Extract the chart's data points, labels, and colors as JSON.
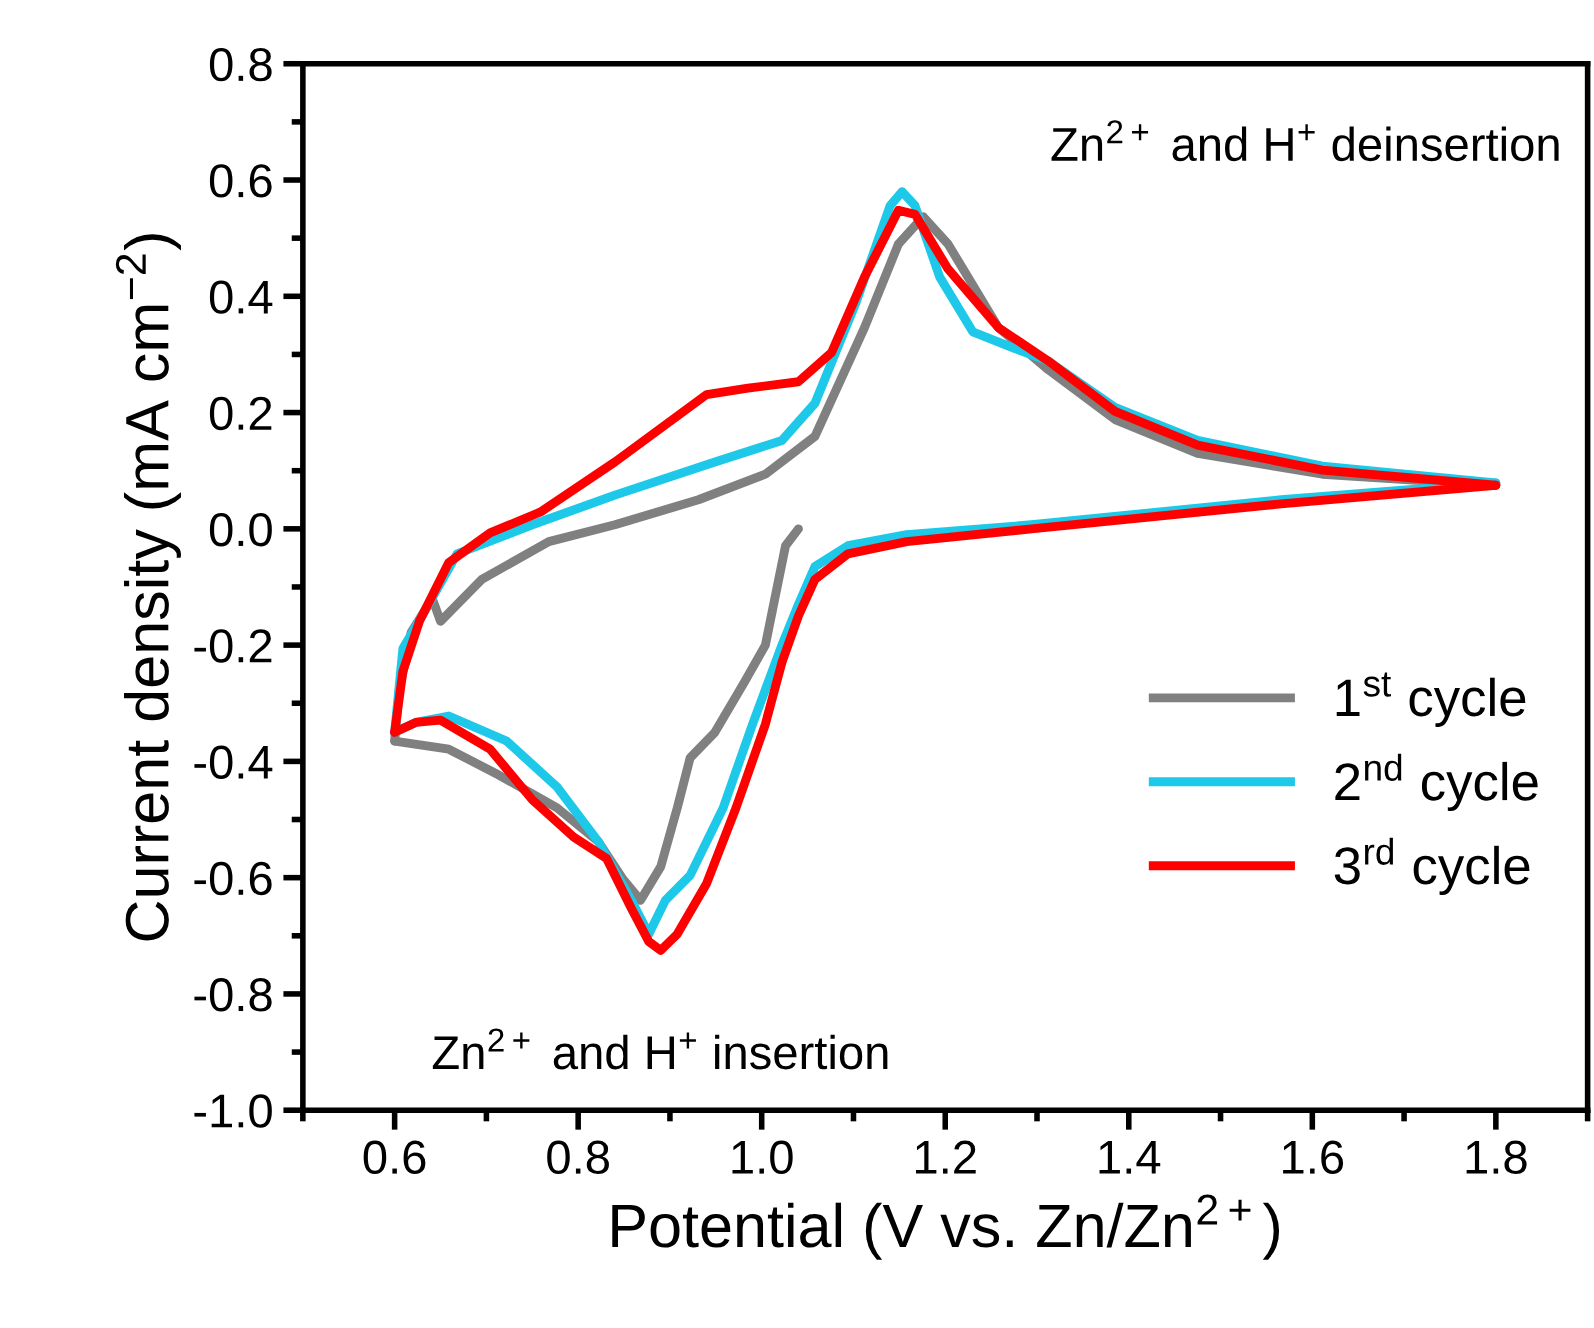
{
  "chart_data": {
    "type": "line",
    "xlabel": "Potential (V vs. Zn/Zn$^{2+}$)",
    "ylabel": "Current density (mA cm$^{−2}$)",
    "annotations": [
      "Zn$^{2+}$ and H$^{+}$ deinsertion",
      "Zn$^{2+}$ and H$^{+}$ insertion"
    ],
    "xlim": [
      0.5,
      1.9
    ],
    "ylim": [
      -1.0,
      0.8
    ],
    "xticks": [
      {
        "value": 0.5,
        "label": null
      },
      0.6,
      {
        "value": 0.7,
        "label": null
      },
      0.8,
      {
        "value": 0.9,
        "label": null
      },
      {
        "value": 1.0,
        "label": "1.0"
      },
      {
        "value": 1.1,
        "label": null
      },
      1.2,
      {
        "value": 1.3,
        "label": null
      },
      1.4,
      {
        "value": 1.5,
        "label": null
      },
      1.6,
      {
        "value": 1.7,
        "label": null
      },
      1.8,
      {
        "value": 1.9,
        "label": null
      }
    ],
    "yticks": [
      {
        "value": -1.0,
        "label": "-1.0"
      },
      {
        "value": -0.9,
        "label": null
      },
      -0.8,
      {
        "value": -0.7,
        "label": null
      },
      -0.6,
      {
        "value": -0.5,
        "label": null
      },
      -0.4,
      {
        "value": -0.3,
        "label": null
      },
      -0.2,
      {
        "value": -0.1,
        "label": null
      },
      {
        "value": 0.0,
        "label": "0.0"
      },
      {
        "value": 0.1,
        "label": null
      },
      0.2,
      {
        "value": 0.3,
        "label": null
      },
      0.4,
      {
        "value": 0.5,
        "label": null
      },
      0.6,
      {
        "value": 0.7,
        "label": null
      },
      0.8
    ],
    "grid": false,
    "legend": "lower right",
    "marker": "none",
    "line_style": "solid",
    "series": [
      {
        "name": "1$^{st}$ cycle",
        "color": "#808080",
        "x": [
          1.04,
          1.026,
          1.013,
          1.004,
          0.981,
          0.949,
          0.922,
          0.908,
          0.89,
          0.868,
          0.849,
          0.822,
          0.777,
          0.713,
          0.659,
          0.6
        ],
        "values": [
          0.0,
          -0.029,
          -0.13,
          -0.2,
          -0.264,
          -0.35,
          -0.394,
          -0.48,
          -0.581,
          -0.639,
          -0.603,
          -0.538,
          -0.48,
          -0.423,
          -0.379,
          -0.365
        ]
      },
      {
        "color": "#808080",
        "x": [
          0.6,
          0.605,
          0.618,
          0.641,
          0.65,
          0.695,
          0.768,
          0.84,
          0.931,
          1.004,
          1.058,
          1.112,
          1.149,
          1.176,
          1.203,
          1.258,
          1.312,
          1.385,
          1.475,
          1.611,
          1.8
        ],
        "values": [
          -0.365,
          -0.279,
          -0.178,
          -0.12,
          -0.159,
          -0.087,
          -0.022,
          0.007,
          0.05,
          0.094,
          0.159,
          0.346,
          0.49,
          0.537,
          0.49,
          0.346,
          0.274,
          0.188,
          0.13,
          0.094,
          0.075
        ]
      },
      {
        "name": "2$^{nd}$ cycle",
        "color": "#1ec8e8",
        "x": [
          1.8,
          1.566,
          1.294,
          1.158,
          1.094,
          1.058,
          1.04,
          1.022,
          0.99,
          0.958,
          0.922,
          0.895,
          0.877,
          0.858,
          0.822,
          0.777,
          0.722,
          0.659,
          0.623,
          0.6
        ],
        "values": [
          0.079,
          0.05,
          0.007,
          -0.01,
          -0.029,
          -0.065,
          -0.13,
          -0.2,
          -0.336,
          -0.48,
          -0.596,
          -0.639,
          -0.697,
          -0.639,
          -0.538,
          -0.444,
          -0.365,
          -0.322,
          -0.333,
          -0.35
        ]
      },
      {
        "color": "#1ec8e8",
        "x": [
          0.6,
          0.609,
          0.632,
          0.668,
          0.75,
          0.84,
          0.949,
          1.022,
          1.058,
          1.103,
          1.14,
          1.153,
          1.167,
          1.194,
          1.23,
          1.276,
          1.312,
          1.385,
          1.475,
          1.611,
          1.8
        ],
        "values": [
          -0.35,
          -0.206,
          -0.144,
          -0.043,
          0.007,
          0.058,
          0.115,
          0.152,
          0.216,
          0.39,
          0.556,
          0.58,
          0.556,
          0.433,
          0.339,
          0.31,
          0.289,
          0.209,
          0.152,
          0.108,
          0.079
        ]
      },
      {
        "name": "3$^{rd}$ cycle",
        "color": "#ff0000",
        "x": [
          1.8,
          1.566,
          1.294,
          1.158,
          1.094,
          1.058,
          1.04,
          1.022,
          1.004,
          0.972,
          0.94,
          0.908,
          0.89,
          0.877,
          0.858,
          0.831,
          0.795,
          0.75,
          0.704,
          0.65,
          0.623,
          0.6
        ],
        "values": [
          0.075,
          0.043,
          0.0,
          -0.022,
          -0.043,
          -0.087,
          -0.15,
          -0.23,
          -0.336,
          -0.48,
          -0.61,
          -0.697,
          -0.725,
          -0.71,
          -0.653,
          -0.567,
          -0.53,
          -0.466,
          -0.379,
          -0.329,
          -0.333,
          -0.35
        ]
      },
      {
        "color": "#ff0000",
        "x": [
          0.6,
          0.609,
          0.627,
          0.659,
          0.704,
          0.759,
          0.84,
          0.94,
          0.985,
          1.04,
          1.076,
          1.112,
          1.149,
          1.167,
          1.203,
          1.258,
          1.312,
          1.385,
          1.475,
          1.611,
          1.8
        ],
        "values": [
          -0.35,
          -0.245,
          -0.159,
          -0.058,
          -0.007,
          0.029,
          0.115,
          0.231,
          0.242,
          0.253,
          0.303,
          0.433,
          0.548,
          0.541,
          0.447,
          0.346,
          0.289,
          0.202,
          0.144,
          0.101,
          0.075
        ]
      }
    ]
  }
}
